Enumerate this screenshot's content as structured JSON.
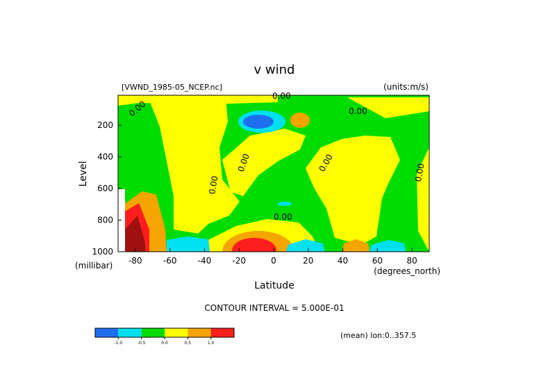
{
  "chart_data": {
    "type": "contour",
    "title": "v wind",
    "subtitle": "[VWND_1985-05_NCEP.nc]",
    "units": "(units:m/s)",
    "x_label": "Latitude",
    "x_unit": "(degrees_north)",
    "y_label": "Level",
    "y_unit": "(millibar)",
    "contour_interval": "CONTOUR INTERVAL = 5.000E-01",
    "note": "(mean) lon:0..357.5",
    "contour_labels": [
      "0.00",
      "0.00",
      "0.00",
      "0.00",
      "0.00",
      "0.00",
      "0.00",
      "0.00"
    ],
    "xlim": [
      -90,
      90
    ],
    "xticks": [
      -80,
      -60,
      -40,
      -20,
      0,
      20,
      40,
      60,
      80
    ],
    "ylim": [
      1000,
      10
    ],
    "yticks": [
      200,
      400,
      600,
      800,
      1000
    ],
    "colorbar": {
      "colors": [
        "#1e6ef0",
        "#00e0f0",
        "#00dc00",
        "#ffff00",
        "#f5a500",
        "#ff1e1e"
      ],
      "levels": [
        {
          "value": -1,
          "label": "-1.0"
        },
        {
          "value": -0.5,
          "label": "-0.5"
        },
        {
          "value": 0,
          "label": "0.0"
        },
        {
          "value": 0.5,
          "label": "0.5"
        },
        {
          "value": 1,
          "label": "1.0"
        }
      ]
    }
  }
}
